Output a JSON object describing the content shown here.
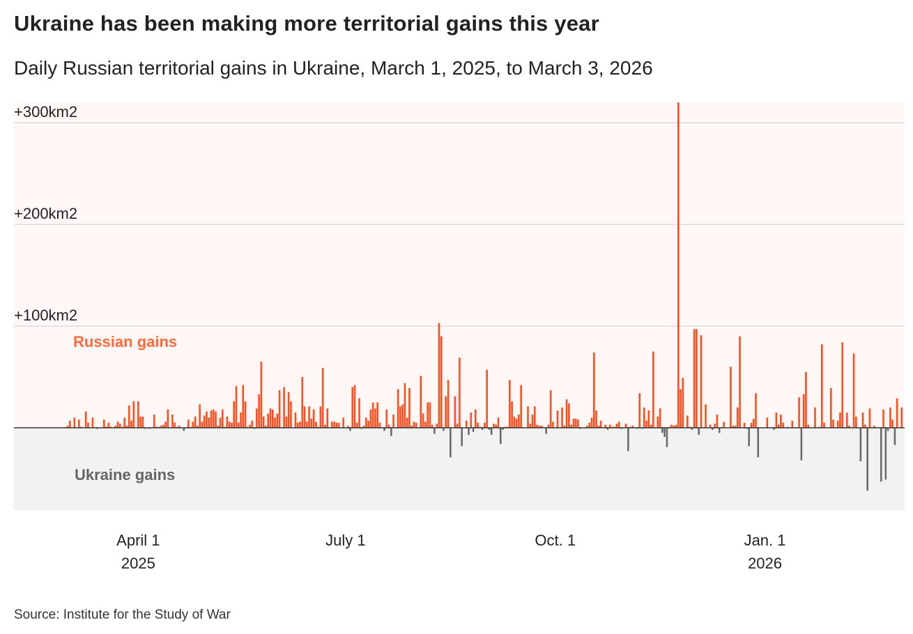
{
  "title": "Ukraine has been making more territorial gains this year",
  "subtitle": "Daily Russian territorial gains in Ukraine, March 1, 2025, to March 3, 2026",
  "source": "Source: Institute for the Study of War",
  "colors": {
    "russian": "#fc4e1f",
    "ukraine": "#6b6b6b",
    "positive_bg": "#fff8f6",
    "negative_bg": "#f2f2f2",
    "grid": "#dddddd",
    "russian_label": "#ff6a3d",
    "ukraine_label": "#666666"
  },
  "chart_data": {
    "type": "bar",
    "x_start": "2025-03-01",
    "x_end": "2026-03-03",
    "ylim": [
      -80,
      320
    ],
    "grid": true,
    "y_ticks": [
      {
        "value": 100,
        "label": "+100km2"
      },
      {
        "value": 200,
        "label": "+200km2"
      },
      {
        "value": 300,
        "label": "+300km2"
      }
    ],
    "x_ticks": [
      {
        "date": "2025-04-01",
        "label": "April 1",
        "sublabel": "2025"
      },
      {
        "date": "2025-07-01",
        "label": "July 1",
        "sublabel": ""
      },
      {
        "date": "2025-10-01",
        "label": "Oct. 1",
        "sublabel": ""
      },
      {
        "date": "2026-01-01",
        "label": "Jan. 1",
        "sublabel": "2026"
      }
    ],
    "annotations": {
      "positive": "Russian gains",
      "negative": "Ukraine gains"
    },
    "values": [
      2,
      7,
      0,
      10,
      0,
      8,
      1,
      0,
      16,
      5,
      0,
      10,
      0,
      -1,
      0,
      0,
      8,
      1,
      5,
      1,
      0,
      2,
      6,
      4,
      1,
      10,
      2,
      22,
      7,
      26,
      0,
      26,
      11,
      11,
      -1,
      0,
      -1,
      0,
      13,
      1,
      1,
      2,
      3,
      6,
      18,
      0,
      13,
      5,
      1,
      2,
      0,
      -3,
      0,
      8,
      1,
      6,
      11,
      2,
      23,
      6,
      12,
      16,
      10,
      17,
      18,
      16,
      2,
      10,
      18,
      1,
      11,
      6,
      5,
      26,
      41,
      5,
      15,
      42,
      26,
      1,
      3,
      7,
      -1,
      19,
      33,
      65,
      11,
      2,
      14,
      19,
      18,
      10,
      14,
      37,
      0,
      40,
      11,
      35,
      26,
      0,
      15,
      5,
      6,
      50,
      21,
      6,
      21,
      9,
      18,
      6,
      1,
      21,
      59,
      3,
      19,
      0,
      6,
      6,
      5,
      5,
      0,
      10,
      0,
      2,
      -3,
      40,
      42,
      5,
      29,
      -1,
      2,
      10,
      7,
      18,
      25,
      19,
      25,
      5,
      0,
      -3,
      18,
      3,
      -8,
      13,
      0,
      38,
      21,
      23,
      44,
      10,
      39,
      2,
      6,
      5,
      0,
      51,
      14,
      6,
      25,
      25,
      3,
      -6,
      4,
      103,
      90,
      -3,
      31,
      47,
      -29,
      0,
      31,
      4,
      69,
      -18,
      0,
      7,
      -7,
      15,
      -4,
      18,
      5,
      1,
      -2,
      5,
      57,
      -2,
      -7,
      4,
      3,
      10,
      -16,
      -2,
      1,
      1,
      47,
      26,
      11,
      9,
      13,
      42,
      0,
      0,
      21,
      4,
      13,
      21,
      3,
      2,
      2,
      0,
      -6,
      3,
      37,
      6,
      0,
      17,
      0,
      20,
      2,
      28,
      24,
      3,
      9,
      9,
      8,
      -1,
      0,
      0,
      2,
      5,
      10,
      74,
      17,
      2,
      7,
      0,
      3,
      -2,
      3,
      1,
      1,
      4,
      6,
      -1,
      0,
      4,
      -23,
      1,
      2,
      0,
      -1,
      34,
      -1,
      20,
      7,
      17,
      3,
      75,
      0,
      11,
      19,
      -5,
      -9,
      -19,
      1,
      3,
      2,
      3,
      320,
      38,
      49,
      0,
      12,
      1,
      -2,
      97,
      97,
      -7,
      91,
      0,
      23,
      0,
      3,
      -2,
      4,
      13,
      -5,
      0,
      6,
      0,
      0,
      60,
      2,
      2,
      20,
      90,
      0,
      5,
      -1,
      -18,
      5,
      9,
      34,
      -29,
      0,
      0,
      0,
      10,
      0,
      0,
      -2,
      15,
      3,
      13,
      5,
      0,
      1,
      0,
      7,
      0,
      0,
      30,
      -32,
      33,
      55,
      3,
      0,
      0,
      20,
      0,
      1,
      82,
      5,
      0,
      0,
      39,
      8,
      0,
      7,
      15,
      84,
      0,
      15,
      2,
      0,
      73,
      11,
      0,
      -33,
      15,
      3,
      -62,
      19,
      0,
      2,
      0,
      0,
      -53,
      18,
      -51,
      -3,
      20,
      8,
      -17,
      29,
      0,
      20,
      0
    ]
  }
}
